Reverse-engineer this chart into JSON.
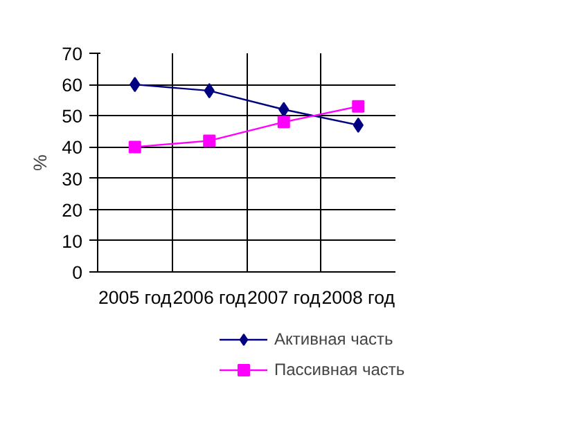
{
  "chart_data": {
    "type": "line",
    "ylabel": "%",
    "categories": [
      "2005 год",
      "2006 год",
      "2007 год",
      "2008 год"
    ],
    "series": [
      {
        "name": "Активная часть",
        "color": "#000080",
        "marker": "diamond",
        "values": [
          60,
          58,
          52,
          47
        ]
      },
      {
        "name": "Пассивная часть",
        "color": "#ff00ff",
        "marker": "square",
        "values": [
          40,
          42,
          48,
          53
        ]
      }
    ],
    "ylim": [
      0,
      70
    ],
    "yticks": [
      0,
      10,
      20,
      30,
      40,
      50,
      60,
      70
    ],
    "grid": true,
    "legend": "bottom"
  }
}
